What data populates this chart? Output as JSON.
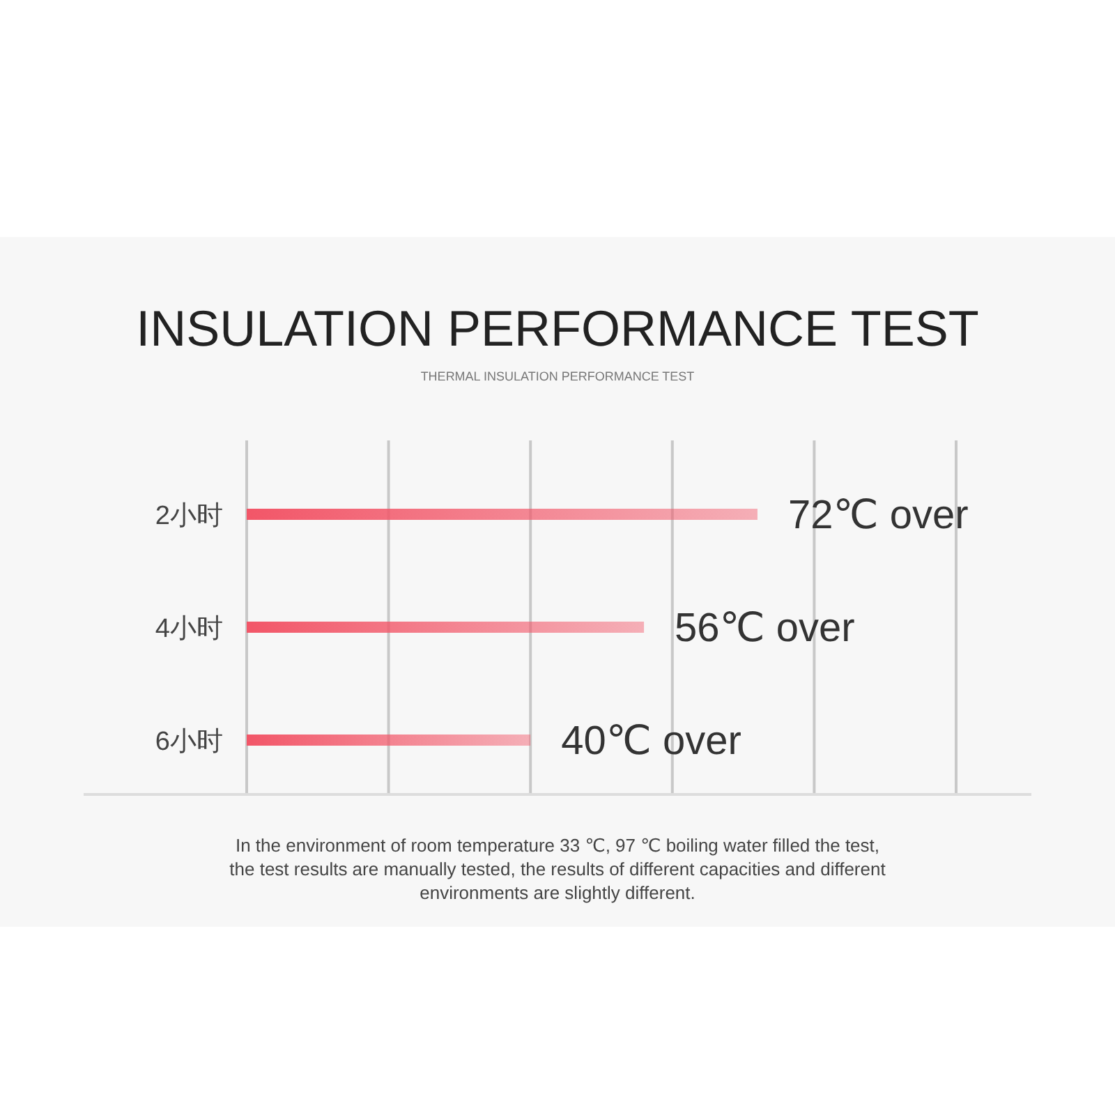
{
  "chart_data": {
    "type": "bar",
    "orientation": "horizontal",
    "title": "INSULATION PERFORMANCE TEST",
    "subtitle": "THERMAL INSULATION PERFORMANCE TEST",
    "categories": [
      "2小时",
      "4小时",
      "6小时"
    ],
    "values": [
      72,
      56,
      40
    ],
    "value_labels": [
      "72℃ over",
      "56℃ over",
      "40℃ over"
    ],
    "color": "#f25668",
    "xlim": [
      0,
      100
    ],
    "xticks": [
      {
        "value": 0,
        "label": null
      },
      {
        "value": 20,
        "label": null
      },
      {
        "value": 40,
        "label": null
      },
      {
        "value": 60,
        "label": null
      },
      {
        "value": 80,
        "label": null
      },
      {
        "value": 100,
        "label": null
      }
    ],
    "tick_labels": "y",
    "grid": "x",
    "annotations": [
      "In the environment of room temperature 33 ℃, 97 ℃ boiling water filled the test, the test results are manually tested, the results of different capacities and different environments are slightly different."
    ]
  }
}
